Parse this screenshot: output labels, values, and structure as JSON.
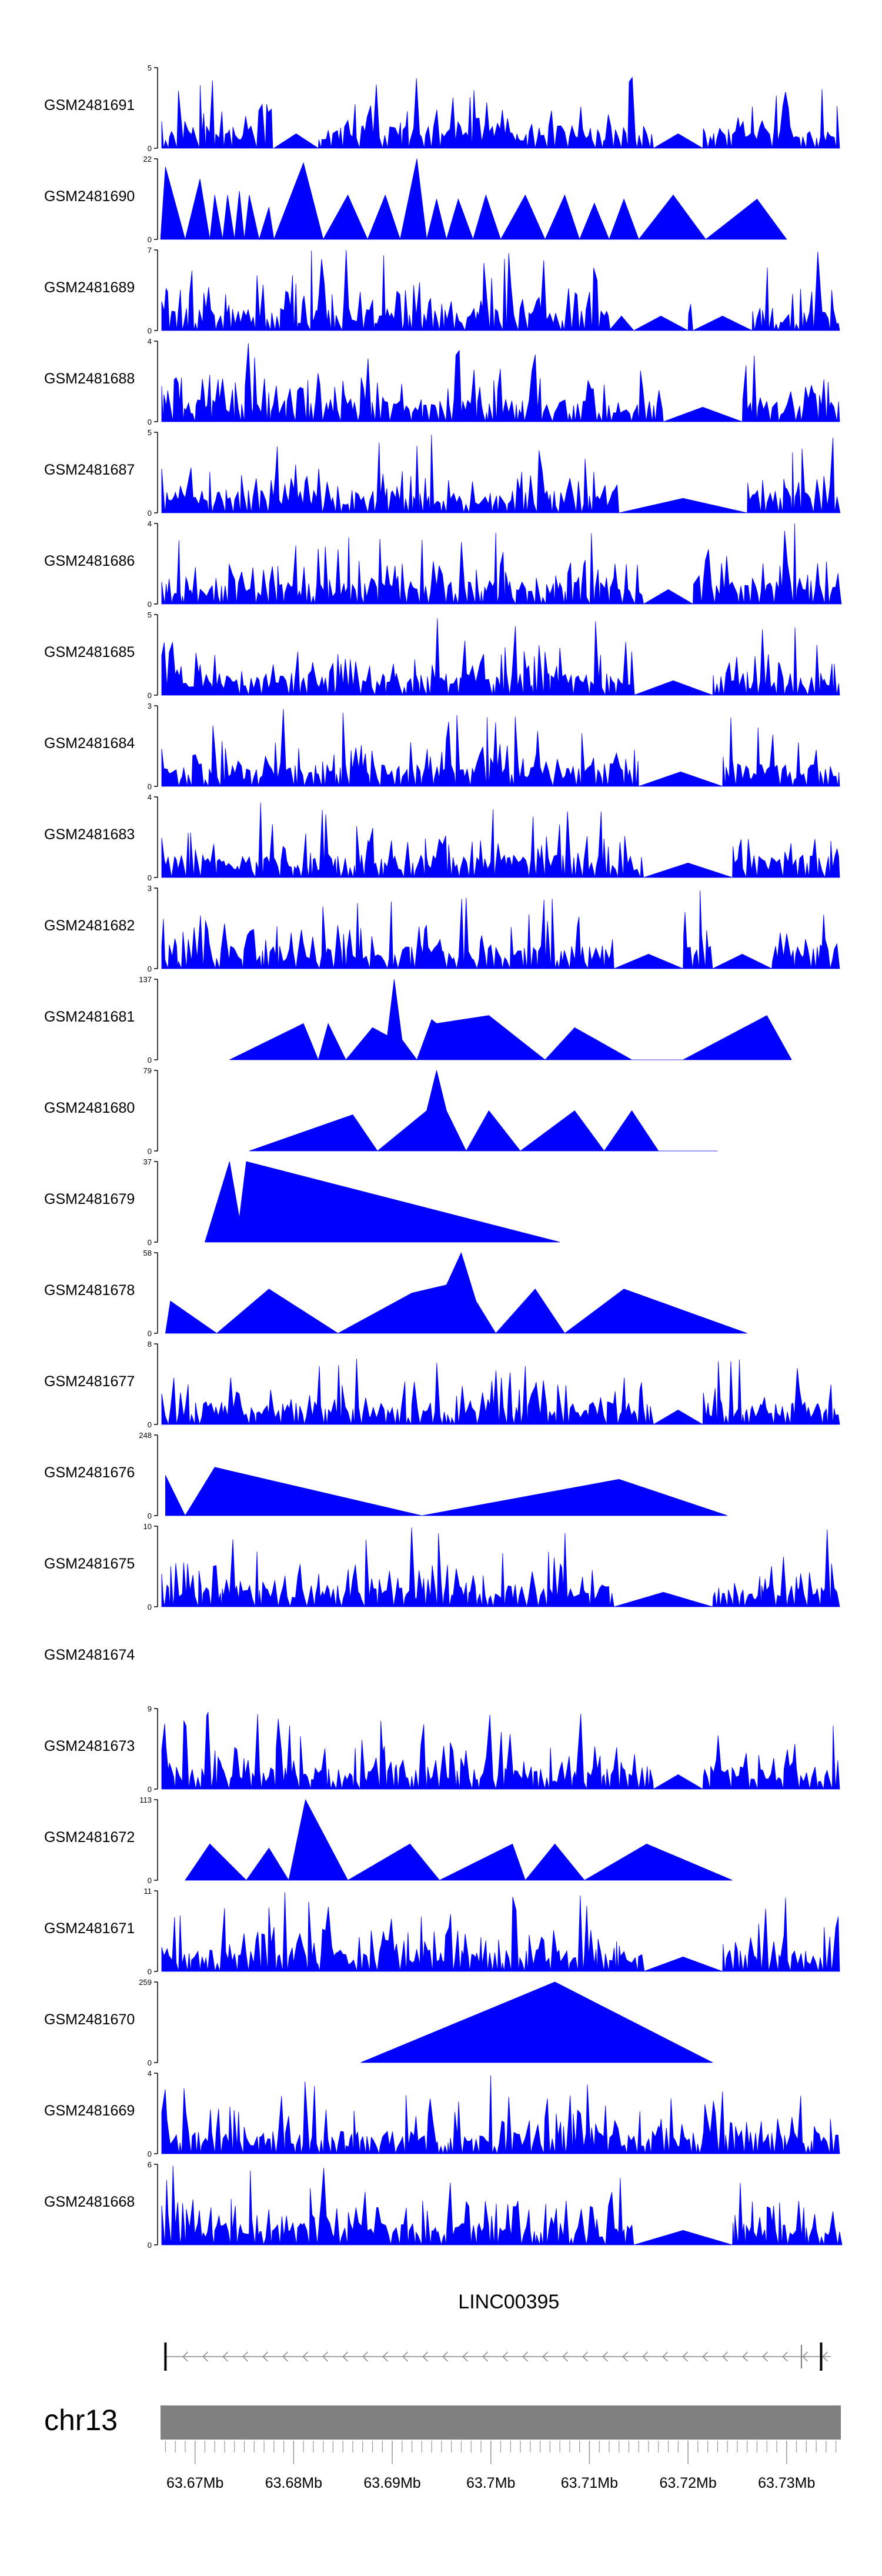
{
  "chart_data": {
    "type": "area",
    "title": "",
    "color": "#0000ff",
    "tracks": [
      {
        "name": "GSM2481691",
        "ymax": "5",
        "ymin": "0",
        "pattern": "dense",
        "seed": 11,
        "gaps": [
          [
            63.678,
            63.6825
          ],
          [
            63.7165,
            63.7215
          ]
        ]
      },
      {
        "name": "GSM2481690",
        "ymax": "22",
        "ymin": "0",
        "pattern": "sparse",
        "peaks": [
          [
            63.6665,
            0
          ],
          [
            63.667,
            0.9
          ],
          [
            63.669,
            0
          ],
          [
            63.6705,
            0.75
          ],
          [
            63.6715,
            0
          ],
          [
            63.672,
            0.55
          ],
          [
            63.6728,
            0
          ],
          [
            63.6733,
            0.55
          ],
          [
            63.674,
            0
          ],
          [
            63.6745,
            0.6
          ],
          [
            63.675,
            0
          ],
          [
            63.6755,
            0.55
          ],
          [
            63.6765,
            0
          ],
          [
            63.6775,
            0.4
          ],
          [
            63.678,
            0
          ],
          [
            63.681,
            0.95
          ],
          [
            63.683,
            0
          ],
          [
            63.6855,
            0.55
          ],
          [
            63.6875,
            0
          ],
          [
            63.6893,
            0.55
          ],
          [
            63.6908,
            0
          ],
          [
            63.6925,
            1.0
          ],
          [
            63.6935,
            0
          ],
          [
            63.6945,
            0.5
          ],
          [
            63.6955,
            0
          ],
          [
            63.6967,
            0.5
          ],
          [
            63.6982,
            0
          ],
          [
            63.6995,
            0.55
          ],
          [
            63.701,
            0
          ],
          [
            63.7035,
            0.55
          ],
          [
            63.7055,
            0
          ],
          [
            63.7075,
            0.55
          ],
          [
            63.709,
            0
          ],
          [
            63.7105,
            0.45
          ],
          [
            63.712,
            0
          ],
          [
            63.7135,
            0.5
          ],
          [
            63.715,
            0
          ],
          [
            63.7185,
            0.55
          ],
          [
            63.7218,
            0
          ],
          [
            63.727,
            0.5
          ],
          [
            63.73,
            0
          ]
        ]
      },
      {
        "name": "GSM2481689",
        "ymax": "7",
        "ymin": "0",
        "pattern": "dense",
        "seed": 23,
        "gaps": [
          [
            63.712,
            63.7145
          ],
          [
            63.7145,
            63.72
          ],
          [
            63.7205,
            63.7265
          ]
        ]
      },
      {
        "name": "GSM2481688",
        "ymax": "4",
        "ymin": "0",
        "pattern": "dense",
        "seed": 37,
        "gaps": [
          [
            63.7175,
            63.7255
          ]
        ]
      },
      {
        "name": "GSM2481687",
        "ymax": "5",
        "ymin": "0",
        "pattern": "dense",
        "seed": 41,
        "gaps": [
          [
            63.713,
            63.726
          ]
        ]
      },
      {
        "name": "GSM2481686",
        "ymax": "4",
        "ymin": "0",
        "pattern": "dense",
        "seed": 53,
        "gaps": [
          [
            63.7155,
            63.7205
          ]
        ]
      },
      {
        "name": "GSM2481685",
        "ymax": "5",
        "ymin": "0",
        "pattern": "dense",
        "seed": 61,
        "gaps": [
          [
            63.7145,
            63.7225
          ]
        ]
      },
      {
        "name": "GSM2481684",
        "ymax": "3",
        "ymin": "0",
        "pattern": "dense",
        "seed": 71,
        "gaps": [
          [
            63.715,
            63.7235
          ]
        ]
      },
      {
        "name": "GSM2481683",
        "ymax": "4",
        "ymin": "0",
        "pattern": "dense",
        "seed": 83,
        "gaps": [
          [
            63.7155,
            63.7245
          ]
        ]
      },
      {
        "name": "GSM2481682",
        "ymax": "3",
        "ymin": "0",
        "pattern": "dense",
        "seed": 97,
        "gaps": [
          [
            63.7125,
            63.7195
          ],
          [
            63.7225,
            63.7285
          ]
        ]
      },
      {
        "name": "GSM2481681",
        "ymax": "137",
        "ymin": "0",
        "pattern": "sparse",
        "peaks": [
          [
            63.6735,
            0
          ],
          [
            63.681,
            0.45
          ],
          [
            63.6825,
            0
          ],
          [
            63.6835,
            0.45
          ],
          [
            63.6853,
            0
          ],
          [
            63.688,
            0.4
          ],
          [
            63.6895,
            0.3
          ],
          [
            63.6902,
            1.0
          ],
          [
            63.691,
            0.25
          ],
          [
            63.6925,
            0
          ],
          [
            63.694,
            0.5
          ],
          [
            63.6945,
            0.45
          ],
          [
            63.6998,
            0.55
          ],
          [
            63.7055,
            0
          ],
          [
            63.7085,
            0.4
          ],
          [
            63.7143,
            0
          ],
          [
            63.7195,
            0
          ],
          [
            63.728,
            0.55
          ],
          [
            63.7305,
            0
          ]
        ]
      },
      {
        "name": "GSM2481680",
        "ymax": "79",
        "ymin": "0",
        "pattern": "sparse",
        "peaks": [
          [
            63.6755,
            0
          ],
          [
            63.686,
            0.45
          ],
          [
            63.6885,
            0
          ],
          [
            63.6935,
            0.5
          ],
          [
            63.6945,
            1.0
          ],
          [
            63.6955,
            0.5
          ],
          [
            63.6975,
            0
          ],
          [
            63.6998,
            0.5
          ],
          [
            63.703,
            0
          ],
          [
            63.7085,
            0.5
          ],
          [
            63.7115,
            0
          ],
          [
            63.7143,
            0.5
          ],
          [
            63.717,
            0
          ],
          [
            63.723,
            0
          ]
        ]
      },
      {
        "name": "GSM2481679",
        "ymax": "37",
        "ymin": "0",
        "pattern": "sparse",
        "peaks": [
          [
            63.671,
            0
          ],
          [
            63.6735,
            1.0
          ],
          [
            63.6745,
            0.3
          ],
          [
            63.6752,
            1.0
          ],
          [
            63.707,
            0
          ]
        ]
      },
      {
        "name": "GSM2481678",
        "ymax": "58",
        "ymin": "0",
        "pattern": "sparse",
        "peaks": [
          [
            63.667,
            0
          ],
          [
            63.6675,
            0.4
          ],
          [
            63.6722,
            0
          ],
          [
            63.6775,
            0.55
          ],
          [
            63.6845,
            0
          ],
          [
            63.692,
            0.5
          ],
          [
            63.6955,
            0.6
          ],
          [
            63.697,
            1.0
          ],
          [
            63.6985,
            0.4
          ],
          [
            63.7005,
            0
          ],
          [
            63.7045,
            0.55
          ],
          [
            63.7075,
            0
          ],
          [
            63.7135,
            0.55
          ],
          [
            63.726,
            0
          ]
        ]
      },
      {
        "name": "GSM2481677",
        "ymax": "8",
        "ymin": "0",
        "pattern": "dense",
        "seed": 101,
        "gaps": [
          [
            63.7165,
            63.7215
          ]
        ]
      },
      {
        "name": "GSM2481676",
        "ymax": "248",
        "ymin": "0",
        "pattern": "sparse",
        "peaks": [
          [
            63.667,
            0.5
          ],
          [
            63.669,
            0
          ],
          [
            63.672,
            0.6
          ],
          [
            63.693,
            0
          ],
          [
            63.713,
            0.45
          ],
          [
            63.724,
            0
          ]
        ]
      },
      {
        "name": "GSM2481675",
        "ymax": "10",
        "ymin": "0",
        "pattern": "dense",
        "seed": 113,
        "gaps": [
          [
            63.7125,
            63.7225
          ]
        ]
      },
      {
        "name": "GSM2481674",
        "ymax": "",
        "ymin": "",
        "pattern": "empty"
      },
      {
        "name": "GSM2481673",
        "ymax": "9",
        "ymin": "0",
        "pattern": "dense",
        "seed": 127,
        "gaps": [
          [
            63.7165,
            63.7215
          ]
        ]
      },
      {
        "name": "GSM2481672",
        "ymax": "113",
        "ymin": "0",
        "pattern": "sparse",
        "peaks": [
          [
            63.669,
            0
          ],
          [
            63.6715,
            0.45
          ],
          [
            63.6752,
            0
          ],
          [
            63.6775,
            0.4
          ],
          [
            63.6795,
            0
          ],
          [
            63.6812,
            1.0
          ],
          [
            63.6855,
            0
          ],
          [
            63.6918,
            0.45
          ],
          [
            63.6948,
            0
          ],
          [
            63.7022,
            0.45
          ],
          [
            63.7035,
            0
          ],
          [
            63.7065,
            0.45
          ],
          [
            63.7095,
            0
          ],
          [
            63.7158,
            0.45
          ],
          [
            63.7245,
            0
          ]
        ]
      },
      {
        "name": "GSM2481671",
        "ymax": "11",
        "ymin": "0",
        "pattern": "dense",
        "seed": 131,
        "gaps": [
          [
            63.7155,
            63.7235
          ]
        ]
      },
      {
        "name": "GSM2481670",
        "ymax": "259",
        "ymin": "0",
        "pattern": "sparse",
        "peaks": [
          [
            63.6868,
            0
          ],
          [
            63.7065,
            1.0
          ],
          [
            63.7225,
            0
          ]
        ]
      },
      {
        "name": "GSM2481669",
        "ymax": "4",
        "ymin": "0",
        "pattern": "dense",
        "seed": 139,
        "gaps": []
      },
      {
        "name": "GSM2481668",
        "ymax": "6",
        "ymin": "0",
        "pattern": "dense",
        "seed": 149,
        "gaps": [
          [
            63.7145,
            63.7245
          ]
        ]
      }
    ],
    "gene": {
      "name": "LINC00395",
      "strand": "-",
      "start": 63.667,
      "end": 63.7345,
      "exons": [
        63.667,
        63.7315,
        63.7335
      ]
    },
    "chromosome": "chr13",
    "x_ticks": [
      {
        "value": 63.67,
        "label": "63.67Mb"
      },
      {
        "value": 63.68,
        "label": "63.68Mb"
      },
      {
        "value": 63.69,
        "label": "63.69Mb"
      },
      {
        "value": 63.7,
        "label": "63.7Mb"
      },
      {
        "value": 63.71,
        "label": "63.71Mb"
      },
      {
        "value": 63.72,
        "label": "63.72Mb"
      },
      {
        "value": 63.73,
        "label": "63.73Mb"
      }
    ],
    "xlim": [
      63.6665,
      63.7355
    ]
  }
}
